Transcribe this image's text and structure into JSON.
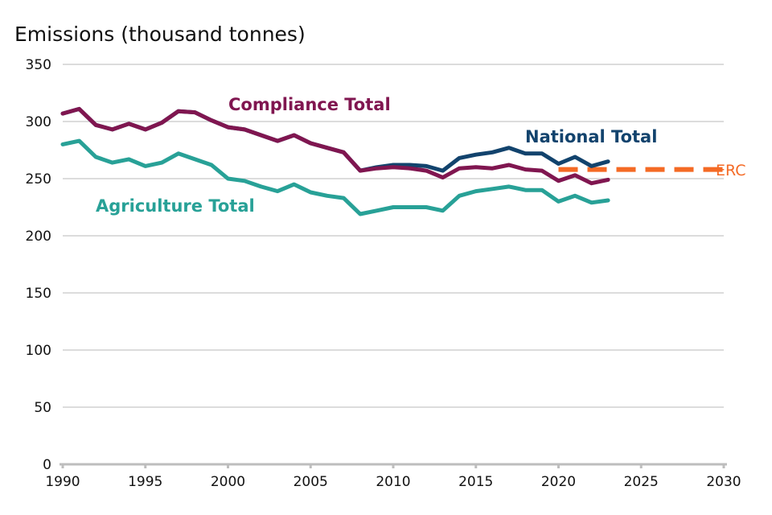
{
  "chart_data": {
    "type": "line",
    "title": "",
    "xlabel": "",
    "ylabel": "Emissions (thousand tonnes)",
    "xlim": [
      1990,
      2030
    ],
    "ylim": [
      0,
      350
    ],
    "xticks": [
      1990,
      1995,
      2000,
      2005,
      2010,
      2015,
      2020,
      2025,
      2030
    ],
    "yticks": [
      0,
      50,
      100,
      150,
      200,
      250,
      300,
      350
    ],
    "grid": "horizontal",
    "legend": "none (direct labels)",
    "x": [
      1990,
      1991,
      1992,
      1993,
      1994,
      1995,
      1996,
      1997,
      1998,
      1999,
      2000,
      2001,
      2002,
      2003,
      2004,
      2005,
      2006,
      2007,
      2008,
      2009,
      2010,
      2011,
      2012,
      2013,
      2014,
      2015,
      2016,
      2017,
      2018,
      2019,
      2020,
      2021,
      2022,
      2023
    ],
    "series": [
      {
        "name": "National Total",
        "color": "#12436d",
        "values": [
          307,
          311,
          297,
          293,
          298,
          293,
          299,
          309,
          308,
          301,
          295,
          293,
          288,
          283,
          288,
          281,
          277,
          273,
          257,
          260,
          262,
          262,
          261,
          257,
          268,
          271,
          273,
          277,
          272,
          272,
          263,
          269,
          261,
          265
        ]
      },
      {
        "name": "Compliance Total",
        "color": "#801650",
        "values": [
          307,
          311,
          297,
          293,
          298,
          293,
          299,
          309,
          308,
          301,
          295,
          293,
          288,
          283,
          288,
          281,
          277,
          273,
          257,
          259,
          260,
          259,
          257,
          251,
          259,
          260,
          259,
          262,
          258,
          257,
          248,
          253,
          246,
          249
        ]
      },
      {
        "name": "Agriculture Total",
        "color": "#28a197",
        "values": [
          280,
          283,
          269,
          264,
          267,
          261,
          264,
          272,
          267,
          262,
          250,
          248,
          243,
          239,
          245,
          238,
          235,
          233,
          219,
          222,
          225,
          225,
          225,
          222,
          235,
          239,
          241,
          243,
          240,
          240,
          230,
          235,
          229,
          231
        ]
      }
    ],
    "reference": {
      "name": "ERC",
      "color": "#f46a25",
      "x": [
        2020,
        2030
      ],
      "value": 258
    }
  }
}
